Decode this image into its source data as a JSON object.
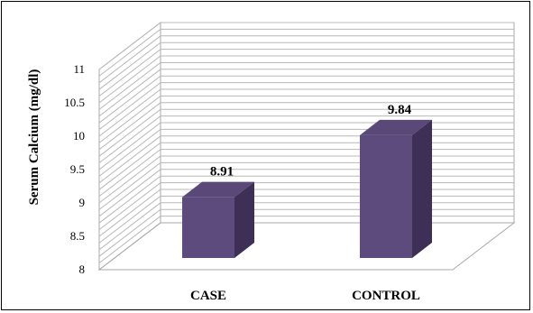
{
  "chart_data": {
    "type": "bar",
    "style": "3d-column",
    "categories": [
      "CASE",
      "CONTROL"
    ],
    "series": [
      {
        "values": [
          8.91,
          9.84
        ]
      }
    ],
    "data_labels": [
      "8.91",
      "9.84"
    ],
    "ylabel": "Serum Calcium (mg/dl)",
    "xlabel": "",
    "title": "",
    "ylim": [
      8,
      11
    ],
    "yticks": [
      8,
      8.5,
      9,
      9.5,
      10,
      10.5,
      11
    ],
    "ytick_labels": [
      "8",
      "8.5",
      "9",
      "9.5",
      "10",
      "10.5",
      "11"
    ],
    "minor_gridlines_per_major": 5,
    "grid": true,
    "legend": "none",
    "colors": {
      "bar_front": "#5e4b7e",
      "bar_top": "#5a4878",
      "bar_side": "#3d2f55",
      "gridline": "#b8b8b8",
      "wall": "#a9a9a9"
    }
  }
}
